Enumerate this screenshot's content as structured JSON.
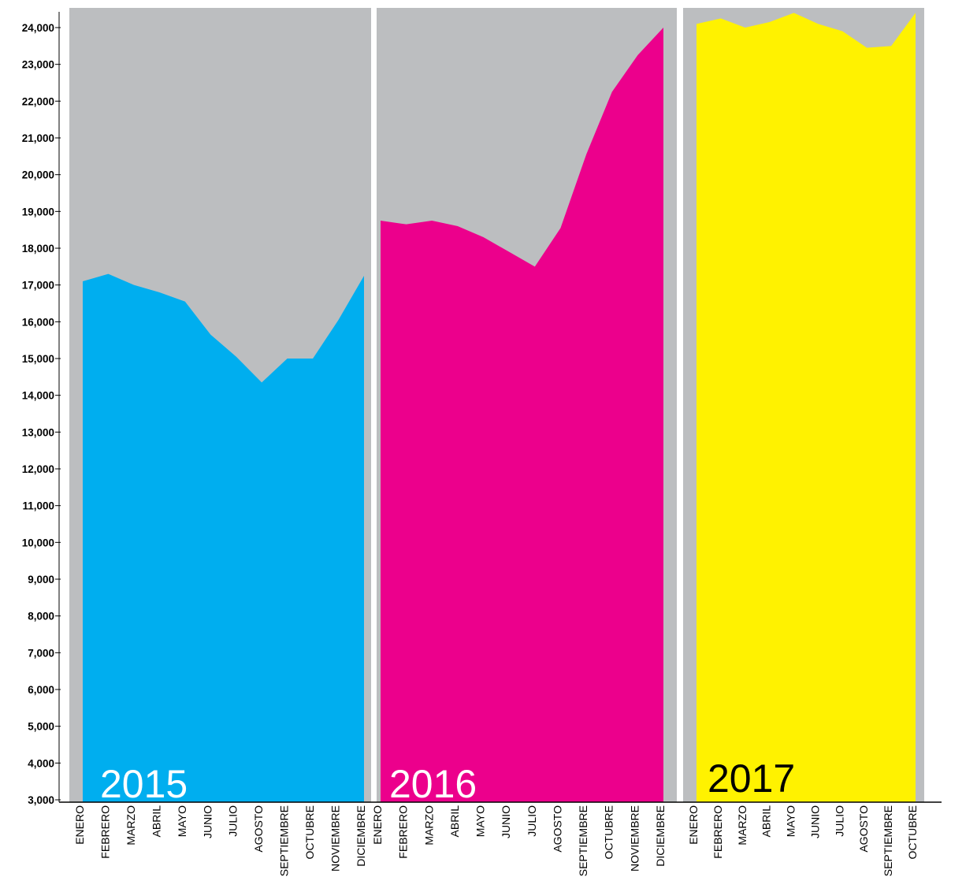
{
  "chart_data": {
    "type": "area",
    "ylim": [
      3000,
      24000
    ],
    "yticks": [
      {
        "value": 3000,
        "label": "3,000"
      },
      {
        "value": 4000,
        "label": "4,000"
      },
      {
        "value": 5000,
        "label": "5,000"
      },
      {
        "value": 6000,
        "label": "6,000"
      },
      {
        "value": 7000,
        "label": "7,000"
      },
      {
        "value": 8000,
        "label": "8,000"
      },
      {
        "value": 9000,
        "label": "9,000"
      },
      {
        "value": 10000,
        "label": "10,000"
      },
      {
        "value": 11000,
        "label": "11,000"
      },
      {
        "value": 12000,
        "label": "12,000"
      },
      {
        "value": 13000,
        "label": "13,000"
      },
      {
        "value": 14000,
        "label": "14,000"
      },
      {
        "value": 15000,
        "label": "15,000"
      },
      {
        "value": 16000,
        "label": "16,000"
      },
      {
        "value": 17000,
        "label": "17,000"
      },
      {
        "value": 18000,
        "label": "18,000"
      },
      {
        "value": 19000,
        "label": "19,000"
      },
      {
        "value": 20000,
        "label": "20,000"
      },
      {
        "value": 21000,
        "label": "21,000"
      },
      {
        "value": 22000,
        "label": "22,000"
      },
      {
        "value": 23000,
        "label": "23,000"
      },
      {
        "value": 24000,
        "label": "24,000"
      }
    ],
    "panels": [
      {
        "label": "2015",
        "color": "#00aeef",
        "label_color": "#ffffff",
        "categories": [
          "ENERO",
          "FEBRERO",
          "MARZO",
          "ABRIL",
          "MAYO",
          "JUNIO",
          "JULIO",
          "AGOSTO",
          "SEPTIEMBRE",
          "OCTUBRE",
          "NOVIEMBRE",
          "DICIEMBRE"
        ],
        "values": [
          17100,
          17300,
          17000,
          16800,
          16550,
          15650,
          15050,
          14350,
          15000,
          15000,
          16050,
          17250
        ]
      },
      {
        "label": "2016",
        "color": "#ec008c",
        "label_color": "#ffffff",
        "categories": [
          "ENERO",
          "FEBRERO",
          "MARZO",
          "ABRIL",
          "MAYO",
          "JUNIO",
          "JULIO",
          "AGOSTO",
          "SEPTIEMBRE",
          "OCTUBRE",
          "NOVIEMBRE",
          "DICIEMBRE"
        ],
        "values": [
          18750,
          18650,
          18750,
          18600,
          18300,
          17900,
          17500,
          18550,
          20550,
          22250,
          23250,
          24000
        ]
      },
      {
        "label": "2017",
        "color": "#fff200",
        "label_color": "#000000",
        "categories": [
          "ENERO",
          "FEBRERO",
          "MARZO",
          "ABRIL",
          "MAYO",
          "JUNIO",
          "JULIO",
          "AGOSTO",
          "SEPTIEMBRE",
          "OCTUBRE"
        ],
        "values": [
          24100,
          24250,
          24000,
          24150,
          24400,
          24100,
          23900,
          23450,
          23500,
          24400
        ]
      }
    ]
  }
}
